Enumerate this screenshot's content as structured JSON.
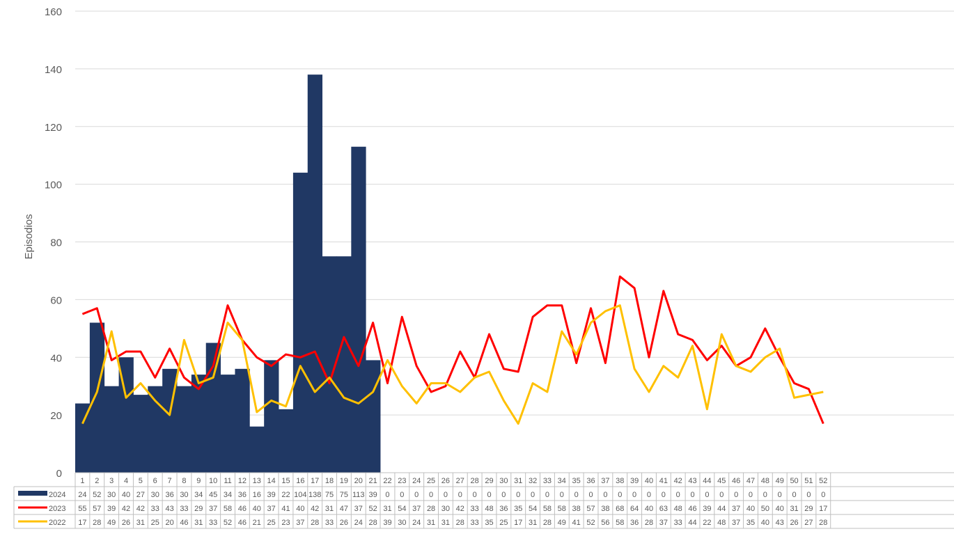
{
  "chart_data": {
    "type": "bar",
    "title": "",
    "xlabel": "",
    "ylabel": "Episodios",
    "ylim": [
      0,
      160
    ],
    "yticks": [
      0,
      20,
      40,
      60,
      80,
      100,
      120,
      140,
      160
    ],
    "grid": true,
    "legend": "data-table-bottom",
    "categories": [
      "1",
      "2",
      "3",
      "4",
      "5",
      "6",
      "7",
      "8",
      "9",
      "10",
      "11",
      "12",
      "13",
      "14",
      "15",
      "16",
      "17",
      "18",
      "19",
      "20",
      "21",
      "22",
      "23",
      "24",
      "25",
      "26",
      "27",
      "28",
      "29",
      "30",
      "31",
      "32",
      "33",
      "34",
      "35",
      "36",
      "37",
      "38",
      "39",
      "40",
      "41",
      "42",
      "43",
      "44",
      "45",
      "46",
      "47",
      "48",
      "49",
      "50",
      "51",
      "52"
    ],
    "series": [
      {
        "name": "2024",
        "type": "bar",
        "color": "#203864",
        "values": [
          24,
          52,
          30,
          40,
          27,
          30,
          36,
          30,
          34,
          45,
          34,
          36,
          16,
          39,
          22,
          104,
          138,
          75,
          75,
          113,
          39,
          0,
          0,
          0,
          0,
          0,
          0,
          0,
          0,
          0,
          0,
          0,
          0,
          0,
          0,
          0,
          0,
          0,
          0,
          0,
          0,
          0,
          0,
          0,
          0,
          0,
          0,
          0,
          0,
          0,
          0,
          0
        ]
      },
      {
        "name": "2023",
        "type": "line",
        "color": "#ff0000",
        "values": [
          55,
          57,
          39,
          42,
          42,
          33,
          43,
          33,
          29,
          37,
          58,
          46,
          40,
          37,
          41,
          40,
          42,
          31,
          47,
          37,
          52,
          31,
          54,
          37,
          28,
          30,
          42,
          33,
          48,
          36,
          35,
          54,
          58,
          58,
          38,
          57,
          38,
          68,
          64,
          40,
          63,
          48,
          46,
          39,
          44,
          37,
          40,
          50,
          40,
          31,
          29,
          17
        ]
      },
      {
        "name": "2022",
        "type": "line",
        "color": "#ffc000",
        "values": [
          17,
          28,
          49,
          26,
          31,
          25,
          20,
          46,
          31,
          33,
          52,
          46,
          21,
          25,
          23,
          37,
          28,
          33,
          26,
          24,
          28,
          39,
          30,
          24,
          31,
          31,
          28,
          33,
          35,
          25,
          17,
          31,
          28,
          49,
          41,
          52,
          56,
          58,
          36,
          28,
          37,
          33,
          44,
          22,
          48,
          37,
          35,
          40,
          43,
          26,
          27,
          28
        ]
      }
    ]
  }
}
